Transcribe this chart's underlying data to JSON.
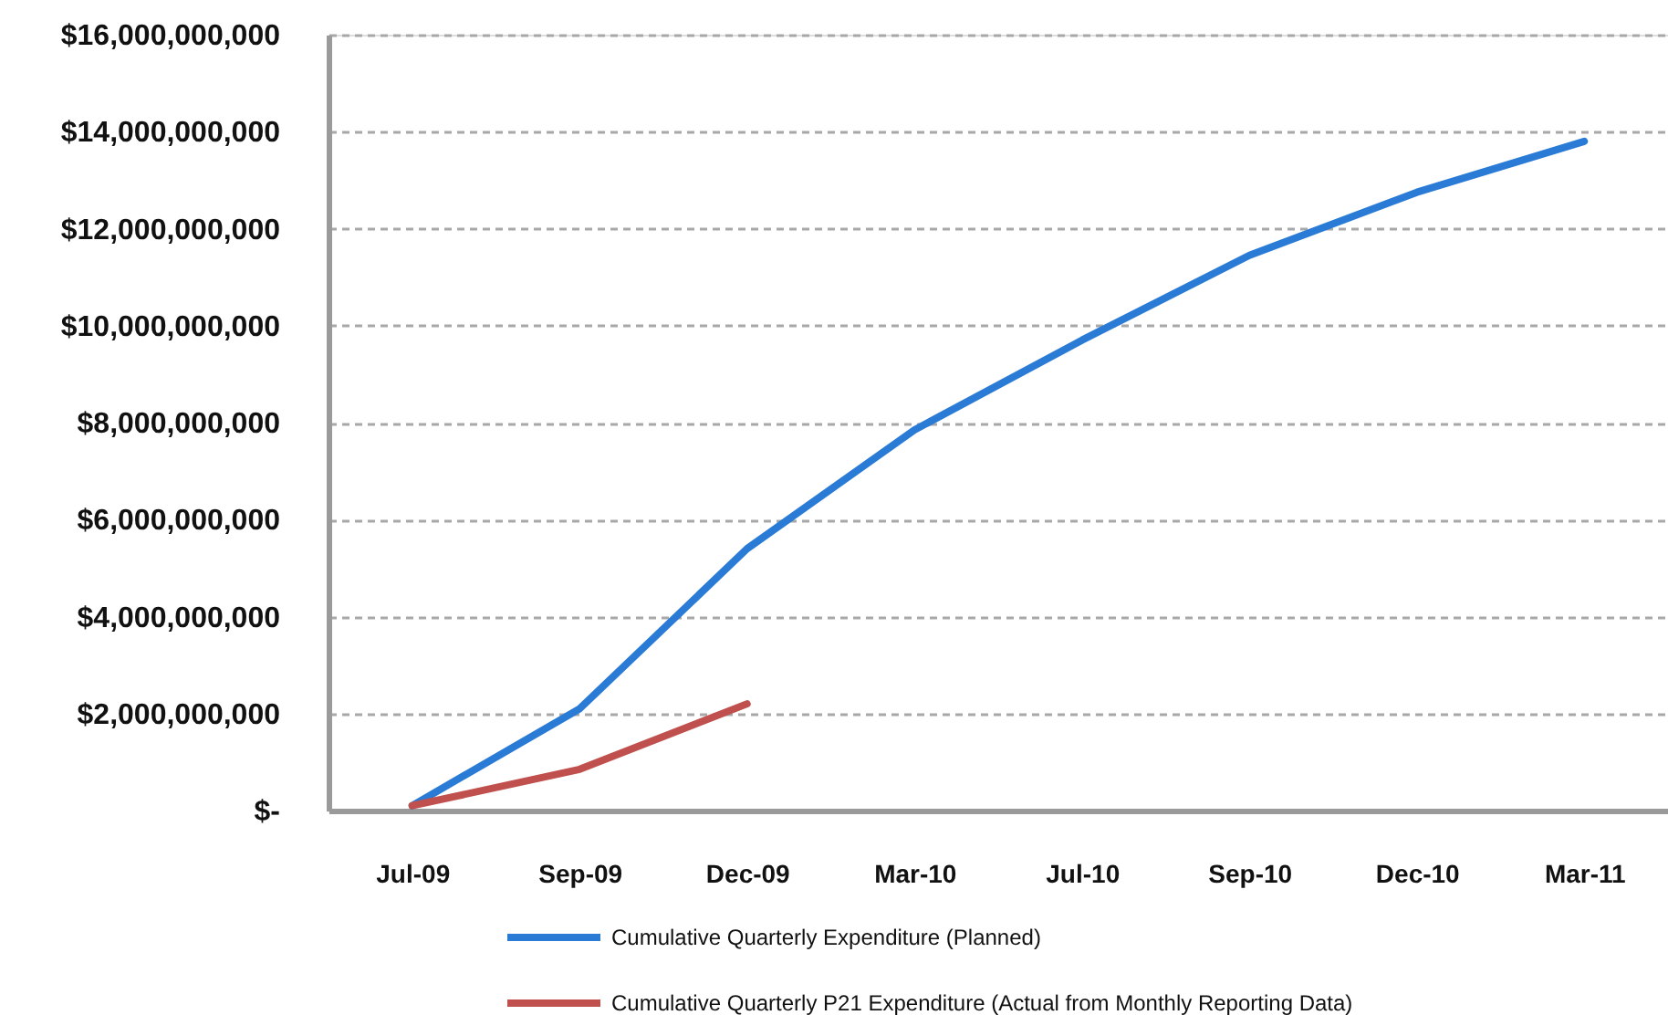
{
  "chart_data": {
    "type": "line",
    "categories": [
      "Jul-09",
      "Sep-09",
      "Dec-09",
      "Mar-10",
      "Jul-10",
      "Sep-10",
      "Dec-10",
      "Mar-11"
    ],
    "series": [
      {
        "name": "Cumulative Quarterly Expenditure (Planned)",
        "color": "#2a7bd5",
        "values": [
          100000000,
          2100000000,
          5400000000,
          7850000000,
          9700000000,
          11450000000,
          12750000000,
          13800000000
        ]
      },
      {
        "name": "Cumulative Quarterly P21 Expenditure (Actual from Monthly Reporting Data)",
        "color": "#c0504d",
        "values": [
          100000000,
          850000000,
          2200000000,
          null,
          null,
          null,
          null,
          null
        ]
      }
    ],
    "ylim": [
      0,
      16000000000
    ],
    "yticks": [
      {
        "value": 0,
        "label": "$-"
      },
      {
        "value": 2000000000,
        "label": "$2,000,000,000"
      },
      {
        "value": 4000000000,
        "label": "$4,000,000,000"
      },
      {
        "value": 6000000000,
        "label": "$6,000,000,000"
      },
      {
        "value": 8000000000,
        "label": "$8,000,000,000"
      },
      {
        "value": 10000000000,
        "label": "$10,000,000,000"
      },
      {
        "value": 12000000000,
        "label": "$12,000,000,000"
      },
      {
        "value": 14000000000,
        "label": "$14,000,000,000"
      },
      {
        "value": 16000000000,
        "label": "$16,000,000,000"
      }
    ],
    "grid": "y",
    "legend": "bottom",
    "line_style": "solid"
  }
}
